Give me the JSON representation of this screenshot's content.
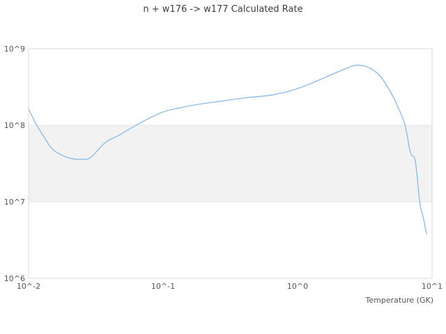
{
  "chart_data": {
    "type": "line",
    "title": "n + w176 -> w177 Calculated Rate",
    "xlabel": "Temperature (GK)",
    "ylabel": "",
    "xscale": "log",
    "yscale": "log",
    "xlim": [
      0.01,
      10
    ],
    "ylim": [
      1000000,
      1000000000
    ],
    "grid": "horizontal-only",
    "legend": "none",
    "xticks": [
      {
        "value": 0.01,
        "label": "10^-2"
      },
      {
        "value": 0.1,
        "label": "10^-1"
      },
      {
        "value": 1,
        "label": "10^0"
      },
      {
        "value": 10,
        "label": "10^1"
      }
    ],
    "yticks": [
      {
        "value": 1000000,
        "label": "10^6"
      },
      {
        "value": 10000000,
        "label": "10^7"
      },
      {
        "value": 100000000,
        "label": "10^8"
      },
      {
        "value": 1000000000,
        "label": "10^9"
      }
    ],
    "band": {
      "from": 10000000,
      "to": 100000000
    },
    "series": [
      {
        "name": "n + w176 -> w177 rate",
        "x": [
          0.01,
          0.0115,
          0.013,
          0.015,
          0.018,
          0.021,
          0.025,
          0.029,
          0.037,
          0.047,
          0.063,
          0.096,
          0.135,
          0.185,
          0.28,
          0.4,
          0.64,
          0.92,
          1.3,
          1.9,
          2.4,
          2.8,
          3.4,
          4.1,
          4.9,
          5.6,
          6.3,
          6.9,
          7.5,
          8.1,
          8.6,
          9.1
        ],
        "y": [
          162000000.0,
          100000000.0,
          71000000.0,
          49000000.0,
          40000000.0,
          36600000.0,
          36000000.0,
          38000000.0,
          59000000.0,
          74000000.0,
          100000000.0,
          145000000.0,
          170000000.0,
          188000000.0,
          208000000.0,
          227000000.0,
          248000000.0,
          287000000.0,
          360000000.0,
          480000000.0,
          570000000.0,
          610000000.0,
          565000000.0,
          440000000.0,
          275000000.0,
          170000000.0,
          100000000.0,
          44000000.0,
          34000000.0,
          10000000.0,
          6200000.0,
          3800000.0
        ]
      }
    ]
  },
  "colors": {
    "line": "#7cb5ec",
    "band": "#f2f2f2",
    "gridline": "#e4e4e4",
    "border": "#d9d9d9",
    "title_text": "#3c3c3c",
    "tick_text": "#555555"
  }
}
